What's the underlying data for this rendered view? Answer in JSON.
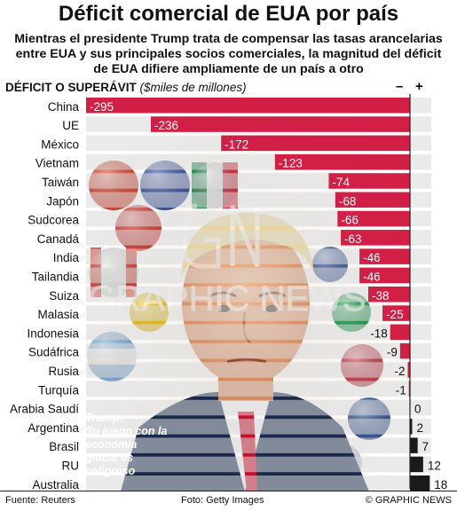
{
  "header": {
    "title": "Déficit comercial de EUA por país",
    "subtitle": "Mientras el presidente Trump trata de compensar las tasas arancelarias entre EUA y sus principales socios comerciales, la magnitud del déficit de EUA difiere ampliamente de un país a otro",
    "axis_title": "DÉFICIT O SUPERÁVIT",
    "axis_unit": "($miles de millones)",
    "minus": "–",
    "plus": "+"
  },
  "caption": {
    "head": "Trump:",
    "body": "Su juego con la economía global es peligroso"
  },
  "watermark": {
    "logo": "GN",
    "text": "GRAPHIC NEWS"
  },
  "footer": {
    "source": "Fuente: Reuters",
    "credit": "Foto: Getty Images",
    "brand": "© GRAPHIC NEWS"
  },
  "colors": {
    "deficit": "#d21f45",
    "surplus": "#1a1a1a",
    "track": "#d9d9d9",
    "axis": "#222222"
  },
  "chart_data": {
    "type": "bar",
    "orientation": "horizontal",
    "categories": [
      "China",
      "UE",
      "México",
      "Vietnam",
      "Taiwán",
      "Japón",
      "Sudcorea",
      "Canadá",
      "India",
      "Tailandia",
      "Suiza",
      "Malasia",
      "Indonesia",
      "Sudáfrica",
      "Rusia",
      "Turquía",
      "Arabia Saudí",
      "Argentina",
      "Brasil",
      "RU",
      "Australia"
    ],
    "values": [
      -295,
      -236,
      -172,
      -123,
      -74,
      -68,
      -66,
      -63,
      -46,
      -46,
      -38,
      -25,
      -18,
      -9,
      -2,
      -1,
      0,
      2,
      7,
      12,
      18
    ],
    "labels": [
      "-295",
      "-236",
      "-172",
      "-123",
      "-74",
      "-68",
      "-66",
      "-63",
      "-46",
      "-46",
      "-38",
      "-25",
      "-18",
      "-9",
      "-2",
      "-1",
      "0",
      "2",
      "7",
      "12",
      "18"
    ],
    "xlim": [
      -295,
      18
    ],
    "xlabel": "DÉFICIT O SUPERÁVIT ($miles de millones)"
  }
}
